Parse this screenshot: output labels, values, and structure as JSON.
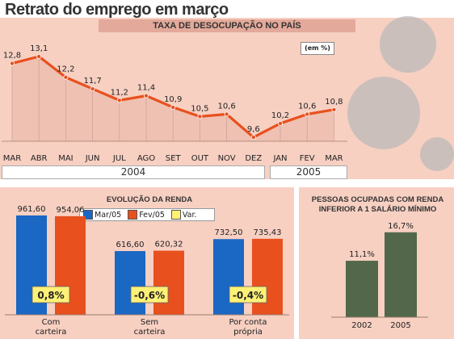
{
  "title": "Retrato do emprego em março",
  "colors": {
    "panel": "#f7d0c2",
    "line": "#e8501e",
    "mar05": "#1a67c4",
    "fev05": "#e8501e",
    "var": "#fff176",
    "gray_bar": "#6e6e6e",
    "green_bar": "#53684a"
  },
  "chart_data": [
    {
      "type": "line",
      "title": "TAXA DE DESOCUPAÇÃO NO PAÍS",
      "unit": "(em %)",
      "categories": [
        "MAR",
        "ABR",
        "MAI",
        "JUN",
        "JUL",
        "AGO",
        "SET",
        "OUT",
        "NOV",
        "DEZ",
        "JAN",
        "FEV",
        "MAR"
      ],
      "values": [
        12.8,
        13.1,
        12.2,
        11.7,
        11.2,
        11.4,
        10.9,
        10.5,
        10.6,
        9.6,
        10.2,
        10.6,
        10.8
      ],
      "labels": [
        "12,8",
        "13,1",
        "12,2",
        "11,7",
        "11,2",
        "11,4",
        "10,9",
        "10,5",
        "10,6",
        "9,6",
        "10,2",
        "10,6",
        "10,8"
      ],
      "years": [
        "2004",
        "2005"
      ]
    },
    {
      "type": "bar",
      "title": "EVOLUÇÃO DA RENDA",
      "legend": [
        "Mar/05",
        "Fev/05",
        "Var."
      ],
      "categories": [
        "Com carteira",
        "Sem carteira",
        "Por conta própria"
      ],
      "category_lines": [
        [
          "Com",
          "carteira"
        ],
        [
          "Sem",
          "carteira"
        ],
        [
          "Por conta",
          "própria"
        ]
      ],
      "series": [
        {
          "name": "Mar/05",
          "values": [
            961.6,
            616.6,
            732.5
          ],
          "labels": [
            "961,60",
            "616,60",
            "732,50"
          ]
        },
        {
          "name": "Fev/05",
          "values": [
            954.06,
            620.32,
            735.43
          ],
          "labels": [
            "954,06",
            "620,32",
            "735,43"
          ]
        }
      ],
      "variation": [
        "0,8%",
        "-0,6%",
        "-0,4%"
      ]
    },
    {
      "type": "bar",
      "title": "PESSOAS OCUPADAS COM RENDA INFERIOR A 1 SALÁRIO MÍNIMO",
      "title_lines": [
        "PESSOAS OCUPADAS COM RENDA",
        "INFERIOR A 1 SALÁRIO MÍNIMO"
      ],
      "categories": [
        "2002",
        "2005"
      ],
      "values": [
        11.1,
        16.7
      ],
      "labels": [
        "11,1%",
        "16,7%"
      ]
    }
  ]
}
